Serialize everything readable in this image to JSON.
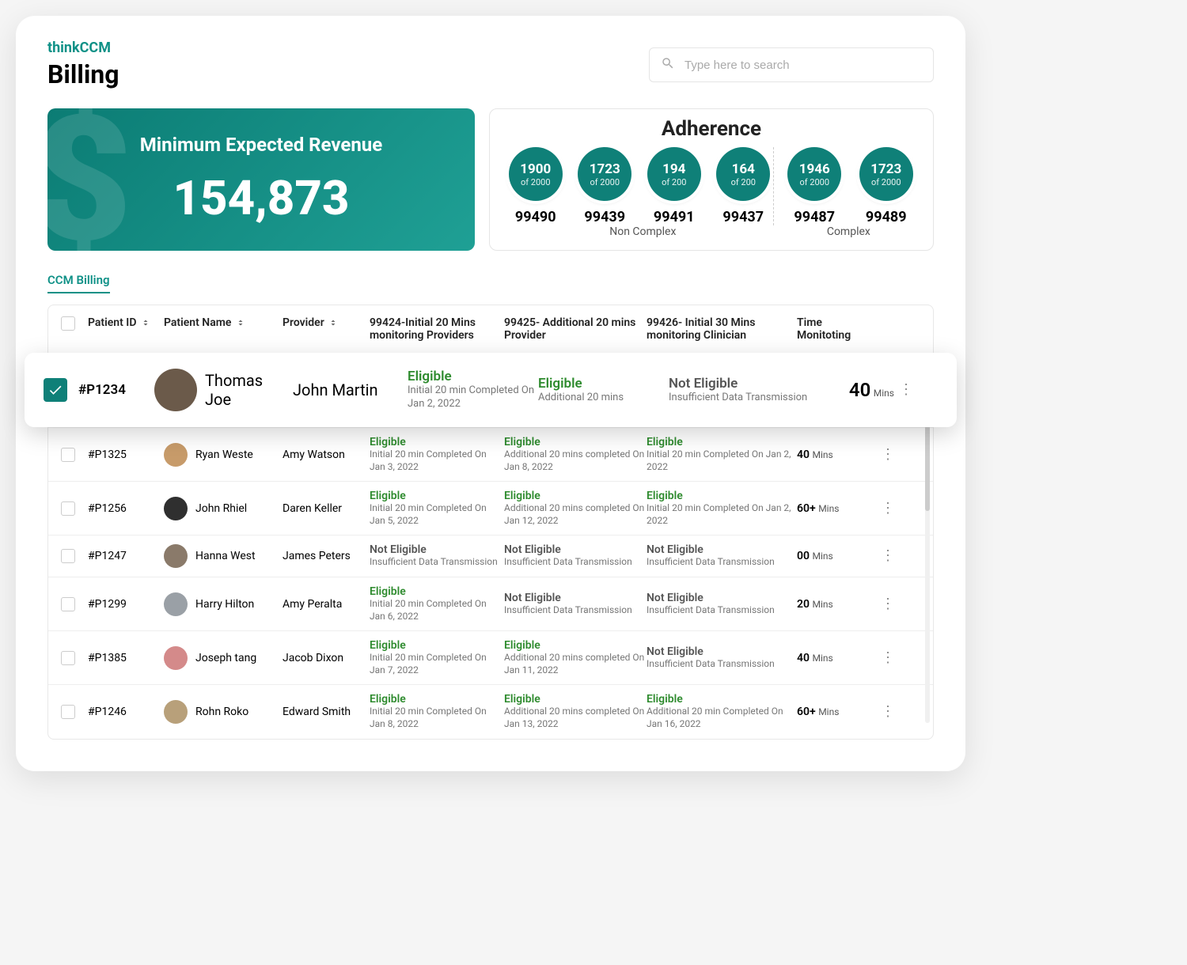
{
  "brand": {
    "text": "thinkCCM",
    "color": "#0f9187"
  },
  "page_title": "Billing",
  "search": {
    "placeholder": "Type here to search"
  },
  "revenue": {
    "label": "Minimum Expected Revenue",
    "value": "154,873",
    "bg_gradient_from": "#0b7c74",
    "bg_gradient_to": "#1fa095"
  },
  "adherence": {
    "title": "Adherence",
    "circle_color": "#0f8078",
    "non_complex_label": "Non Complex",
    "complex_label": "Complex",
    "non_complex": [
      {
        "num": "1900",
        "denom": "of 2000",
        "code": "99490"
      },
      {
        "num": "1723",
        "denom": "of 2000",
        "code": "99439"
      },
      {
        "num": "194",
        "denom": "of 200",
        "code": "99491"
      },
      {
        "num": "164",
        "denom": "of 200",
        "code": "99437"
      }
    ],
    "complex": [
      {
        "num": "1946",
        "denom": "of 2000",
        "code": "99487"
      },
      {
        "num": "1723",
        "denom": "of 2000",
        "code": "99489"
      }
    ]
  },
  "tab": {
    "label": "CCM Billing",
    "color": "#0f9187"
  },
  "columns": {
    "patient_id": "Patient ID",
    "patient_name": "Patient Name",
    "provider": "Provider",
    "c1": "99424-Initial 20 Mins monitoring Providers",
    "c2": "99425- Additional 20 mins Provider",
    "c3": "99426- Initial 30 Mins monitoring Clinician",
    "time": "Time Monitoting"
  },
  "status_colors": {
    "eligible": "#2e8b2e",
    "not_eligible": "#555555"
  },
  "rows": [
    {
      "checked": true,
      "highlight": true,
      "id": "#P1234",
      "name": "Thomas Joe",
      "provider": "John Martin",
      "c1": {
        "status": "Eligible",
        "ok": true,
        "sub": "Initial 20 min Completed On Jan 2, 2022"
      },
      "c2": {
        "status": "Eligible",
        "ok": true,
        "sub": "Additional 20 mins"
      },
      "c3": {
        "status": "Not Eligible",
        "ok": false,
        "sub": "Insufficient Data Transmission"
      },
      "time_val": "40",
      "time_unit": "Mins",
      "avatar_color": "#6b5a4a"
    },
    {
      "checked": false,
      "highlight": false,
      "id": "#P1325",
      "name": "Ryan Weste",
      "provider": "Amy Watson",
      "c1": {
        "status": "Eligible",
        "ok": true,
        "sub": "Initial 20 min Completed On Jan 3, 2022"
      },
      "c2": {
        "status": "Eligible",
        "ok": true,
        "sub": "Additional 20 mins completed On Jan 8, 2022"
      },
      "c3": {
        "status": "Eligible",
        "ok": true,
        "sub": "Initial 20 min Completed On Jan 2, 2022"
      },
      "time_val": "40",
      "time_unit": "Mins",
      "avatar_color": "#c79b6a"
    },
    {
      "checked": false,
      "highlight": false,
      "id": "#P1256",
      "name": "John Rhiel",
      "provider": "Daren Keller",
      "c1": {
        "status": "Eligible",
        "ok": true,
        "sub": "Initial 20 min Completed On Jan 5, 2022"
      },
      "c2": {
        "status": "Eligible",
        "ok": true,
        "sub": "Additional 20 mins completed On Jan 12, 2022"
      },
      "c3": {
        "status": "Eligible",
        "ok": true,
        "sub": "Initial 20 min Completed On Jan 2, 2022"
      },
      "time_val": "60+",
      "time_unit": "Mins",
      "avatar_color": "#2f2f2f"
    },
    {
      "checked": false,
      "highlight": false,
      "id": "#P1247",
      "name": "Hanna West",
      "provider": "James Peters",
      "c1": {
        "status": "Not Eligible",
        "ok": false,
        "sub": "Insufficient Data Transmission"
      },
      "c2": {
        "status": "Not Eligible",
        "ok": false,
        "sub": "Insufficient Data Transmission"
      },
      "c3": {
        "status": "Not Eligible",
        "ok": false,
        "sub": "Insufficient Data Transmission"
      },
      "time_val": "00",
      "time_unit": "Mins",
      "avatar_color": "#8a7a6a"
    },
    {
      "checked": false,
      "highlight": false,
      "id": "#P1299",
      "name": "Harry Hilton",
      "provider": "Amy Peralta",
      "c1": {
        "status": "Eligible",
        "ok": true,
        "sub": "Initial 20 min Completed On Jan 6, 2022"
      },
      "c2": {
        "status": "Not Eligible",
        "ok": false,
        "sub": "Insufficient Data Transmission"
      },
      "c3": {
        "status": "Not Eligible",
        "ok": false,
        "sub": "Insufficient Data Transmission"
      },
      "time_val": "20",
      "time_unit": "Mins",
      "avatar_color": "#9aa0a6"
    },
    {
      "checked": false,
      "highlight": false,
      "id": "#P1385",
      "name": "Joseph tang",
      "provider": "Jacob  Dixon",
      "c1": {
        "status": "Eligible",
        "ok": true,
        "sub": "Initial 20 min Completed On Jan 7, 2022"
      },
      "c2": {
        "status": "Eligible",
        "ok": true,
        "sub": "Additional 20 mins completed On Jan 11, 2022"
      },
      "c3": {
        "status": "Not Eligible",
        "ok": false,
        "sub": "Insufficient Data Transmission"
      },
      "time_val": "40",
      "time_unit": "Mins",
      "avatar_color": "#d48a8a"
    },
    {
      "checked": false,
      "highlight": false,
      "id": "#P1246",
      "name": "Rohn Roko",
      "provider": "Edward Smith",
      "c1": {
        "status": "Eligible",
        "ok": true,
        "sub": "Initial 20 min Completed On Jan 8, 2022"
      },
      "c2": {
        "status": "Eligible",
        "ok": true,
        "sub": "Additional 20 mins completed On Jan 13, 2022"
      },
      "c3": {
        "status": "Eligible",
        "ok": true,
        "sub": "Additional 20 min Completed On Jan 16, 2022"
      },
      "time_val": "60+",
      "time_unit": "Mins",
      "avatar_color": "#b8a07a"
    }
  ]
}
